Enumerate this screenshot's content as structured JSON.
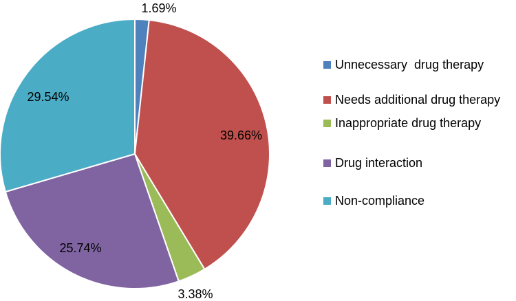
{
  "chart_data": {
    "type": "pie",
    "title": "",
    "legend_position": "right",
    "slices": [
      {
        "name": "Unnecessary  drug therapy",
        "value": 1.69,
        "label": "1.69%",
        "color": "#4F81BD"
      },
      {
        "name": "Needs additional drug therapy",
        "value": 39.66,
        "label": "39.66%",
        "color": "#C0504D"
      },
      {
        "name": "Inappropriate drug therapy",
        "value": 3.38,
        "label": "3.38%",
        "color": "#9BBB59"
      },
      {
        "name": "Drug interaction",
        "value": 25.74,
        "label": "25.74%",
        "color": "#8064A2"
      },
      {
        "name": "Non-compliance",
        "value": 29.54,
        "label": "29.54%",
        "color": "#4BACC6"
      }
    ]
  }
}
